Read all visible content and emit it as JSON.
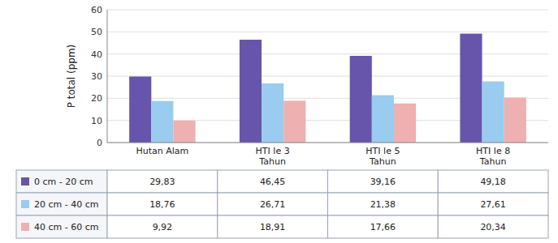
{
  "chart_data": {
    "type": "bar",
    "categories": [
      "Hutan Alam",
      "HTI le 3\nTahun",
      "HTI le 5\nTahun",
      "HTI le 8\nTahun"
    ],
    "series": [
      {
        "name": "0 cm - 20 cm",
        "color": "#6655AA",
        "values": [
          29.83,
          46.45,
          39.16,
          49.18
        ],
        "value_labels": [
          "29,83",
          "46,45",
          "39,16",
          "49,18"
        ]
      },
      {
        "name": "20 cm - 40 cm",
        "color": "#99CCEE",
        "values": [
          18.76,
          26.71,
          21.38,
          27.61
        ],
        "value_labels": [
          "18,76",
          "26,71",
          "21,38",
          "27,61"
        ]
      },
      {
        "name": "40 cm - 60 cm",
        "color": "#EEB0B0",
        "values": [
          9.92,
          18.91,
          17.66,
          20.34
        ],
        "value_labels": [
          "9,92",
          "18,91",
          "17,66",
          "20,34"
        ]
      }
    ],
    "ylabel": "P total (ppm)",
    "ylim": [
      0,
      60
    ],
    "yticks": [
      0,
      10,
      20,
      30,
      40,
      50,
      60
    ],
    "grid": true
  }
}
